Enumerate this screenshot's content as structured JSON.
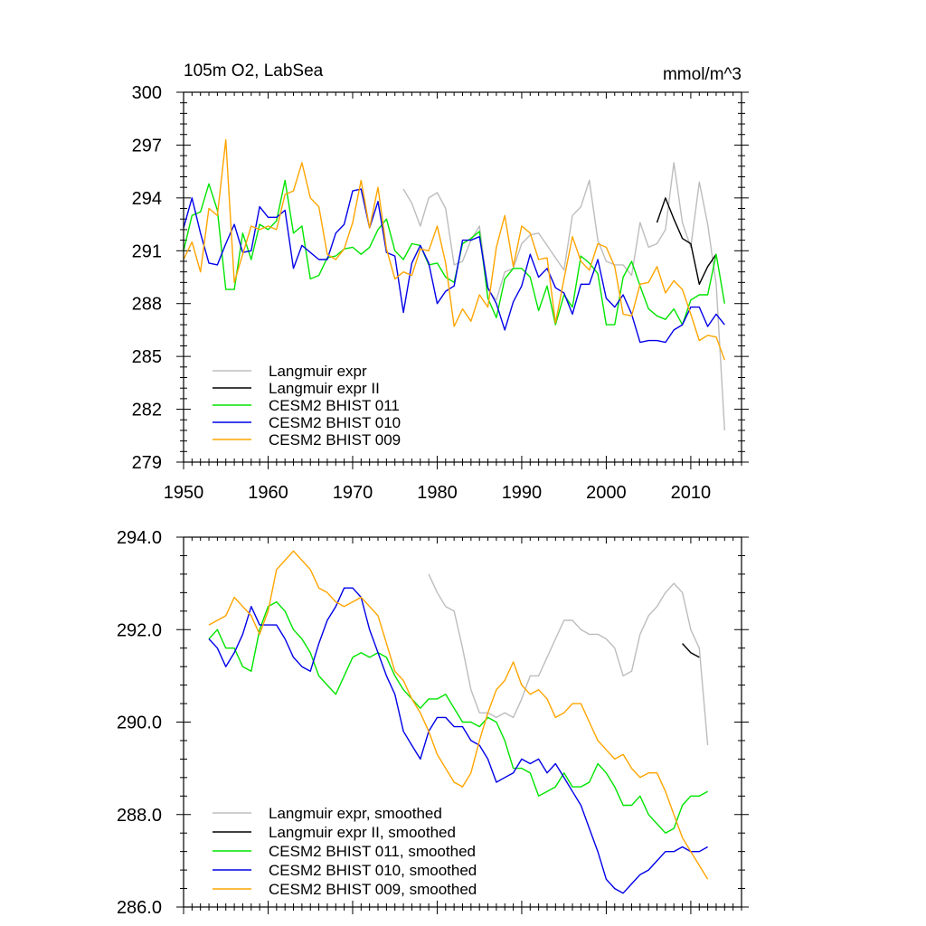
{
  "chart_data": [
    {
      "type": "line",
      "title_left": "105m O2, LabSea",
      "title_right": "mmol/m^3",
      "xlabel": "",
      "ylabel": "",
      "xlim": [
        1950,
        2016
      ],
      "ylim": [
        279,
        300
      ],
      "xticks": [
        1950,
        1960,
        1970,
        1980,
        1990,
        2000,
        2010
      ],
      "xtick_labels": [
        "1950",
        "1960",
        "1970",
        "1980",
        "1990",
        "2000",
        "2010"
      ],
      "yticks": [
        279,
        282,
        285,
        288,
        291,
        294,
        297,
        300
      ],
      "ytick_labels": [
        "279",
        "282",
        "285",
        "288",
        "291",
        "294",
        "297",
        "300"
      ],
      "legend_position": "bottom-left",
      "series": [
        {
          "name": "Langmuir expr",
          "color": "#bdbdbd",
          "x": [
            1976,
            1977,
            1978,
            1979,
            1980,
            1981,
            1982,
            1983,
            1984,
            1985,
            1986,
            1987,
            1988,
            1989,
            1990,
            1991,
            1992,
            1993,
            1994,
            1995,
            1996,
            1997,
            1998,
            1999,
            2000,
            2001,
            2002,
            2003,
            2004,
            2005,
            2006,
            2007,
            2008,
            2009,
            2010,
            2011,
            2012,
            2013,
            2014
          ],
          "y": [
            294.5,
            293.7,
            292.4,
            294.0,
            294.3,
            293.4,
            290.2,
            290.4,
            291.6,
            292.4,
            288.8,
            288.2,
            289.8,
            290.0,
            291.4,
            291.9,
            292.0,
            291.3,
            290.6,
            289.9,
            293.0,
            293.5,
            295.0,
            291.6,
            290.4,
            290.2,
            290.2,
            289.6,
            292.6,
            291.2,
            291.4,
            292.2,
            296.0,
            292.6,
            291.2,
            294.9,
            292.5,
            289.1,
            280.8
          ]
        },
        {
          "name": "Langmuir expr II",
          "color": "#000000",
          "x": [
            2006,
            2007,
            2008,
            2009,
            2010,
            2011,
            2012,
            2013
          ],
          "y": [
            292.6,
            294.0,
            292.8,
            291.7,
            291.4,
            289.1,
            290.1,
            290.8
          ]
        },
        {
          "name": "CESM2 BHIST 011",
          "color": "#00e400",
          "x": [
            1950,
            1951,
            1952,
            1953,
            1954,
            1955,
            1956,
            1957,
            1958,
            1959,
            1960,
            1961,
            1962,
            1963,
            1964,
            1965,
            1966,
            1967,
            1968,
            1969,
            1970,
            1971,
            1972,
            1973,
            1974,
            1975,
            1976,
            1977,
            1978,
            1979,
            1980,
            1981,
            1982,
            1983,
            1984,
            1985,
            1986,
            1987,
            1988,
            1989,
            1990,
            1991,
            1992,
            1993,
            1994,
            1995,
            1996,
            1997,
            1998,
            1999,
            2000,
            2001,
            2002,
            2003,
            2004,
            2005,
            2006,
            2007,
            2008,
            2009,
            2010,
            2011,
            2012,
            2013,
            2014
          ],
          "y": [
            291.0,
            293.0,
            293.2,
            294.8,
            293.3,
            288.8,
            288.8,
            292.0,
            290.5,
            292.5,
            292.2,
            292.7,
            295.0,
            292.0,
            292.4,
            289.4,
            289.6,
            290.6,
            290.7,
            291.1,
            291.2,
            290.8,
            291.2,
            292.2,
            292.8,
            291.0,
            290.5,
            291.4,
            291.3,
            290.2,
            290.3,
            289.5,
            289.2,
            291.4,
            291.7,
            292.1,
            288.3,
            287.2,
            289.4,
            290.0,
            290.0,
            289.5,
            287.6,
            289.0,
            286.8,
            288.5,
            287.8,
            290.7,
            290.3,
            289.7,
            286.8,
            286.8,
            289.5,
            290.4,
            289.0,
            287.7,
            287.3,
            287.1,
            287.7,
            286.8,
            288.2,
            288.5,
            288.5,
            290.8,
            288.0
          ]
        },
        {
          "name": "CESM2 BHIST 010",
          "color": "#0000e8",
          "x": [
            1950,
            1951,
            1952,
            1953,
            1954,
            1955,
            1956,
            1957,
            1958,
            1959,
            1960,
            1961,
            1962,
            1963,
            1964,
            1965,
            1966,
            1967,
            1968,
            1969,
            1970,
            1971,
            1972,
            1973,
            1974,
            1975,
            1976,
            1977,
            1978,
            1979,
            1980,
            1981,
            1982,
            1983,
            1984,
            1985,
            1986,
            1987,
            1988,
            1989,
            1990,
            1991,
            1992,
            1993,
            1994,
            1995,
            1996,
            1997,
            1998,
            1999,
            2000,
            2001,
            2002,
            2003,
            2004,
            2005,
            2006,
            2007,
            2008,
            2009,
            2010,
            2011,
            2012,
            2013,
            2014
          ],
          "y": [
            292.3,
            294.0,
            292.0,
            290.3,
            290.2,
            291.4,
            292.5,
            290.9,
            291.0,
            293.5,
            292.9,
            292.9,
            293.3,
            290.0,
            291.3,
            290.9,
            290.5,
            290.5,
            292.0,
            292.5,
            294.4,
            294.5,
            292.3,
            293.8,
            290.9,
            290.7,
            287.5,
            290.3,
            291.3,
            290.3,
            288.0,
            288.7,
            289.0,
            291.6,
            291.6,
            291.8,
            288.9,
            288.0,
            286.5,
            288.1,
            289.0,
            290.8,
            289.5,
            290.0,
            288.9,
            288.6,
            287.4,
            289.1,
            289.1,
            290.5,
            288.3,
            287.8,
            288.5,
            287.4,
            285.8,
            285.9,
            285.9,
            285.8,
            286.5,
            286.8,
            287.8,
            287.8,
            286.7,
            287.4,
            286.8
          ]
        },
        {
          "name": "CESM2 BHIST 009",
          "color": "#ffa500",
          "x": [
            1950,
            1951,
            1952,
            1953,
            1954,
            1955,
            1956,
            1957,
            1958,
            1959,
            1960,
            1961,
            1962,
            1963,
            1964,
            1965,
            1966,
            1967,
            1968,
            1969,
            1970,
            1971,
            1972,
            1973,
            1974,
            1975,
            1976,
            1977,
            1978,
            1979,
            1980,
            1981,
            1982,
            1983,
            1984,
            1985,
            1986,
            1987,
            1988,
            1989,
            1990,
            1991,
            1992,
            1993,
            1994,
            1995,
            1996,
            1997,
            1998,
            1999,
            2000,
            2001,
            2002,
            2003,
            2004,
            2005,
            2006,
            2007,
            2008,
            2009,
            2010,
            2011,
            2012,
            2013,
            2014
          ],
          "y": [
            290.5,
            291.5,
            289.8,
            293.4,
            293.0,
            297.3,
            289.2,
            290.8,
            292.4,
            292.2,
            292.4,
            292.2,
            294.2,
            294.4,
            296.0,
            294.0,
            293.5,
            290.8,
            290.5,
            291.1,
            292.6,
            295.0,
            292.3,
            294.6,
            291.1,
            289.4,
            289.8,
            289.6,
            291.1,
            291.0,
            292.4,
            290.3,
            286.7,
            287.7,
            287.0,
            288.5,
            287.8,
            291.2,
            293.0,
            290.1,
            292.4,
            292.0,
            290.5,
            290.6,
            286.9,
            289.4,
            291.8,
            290.4,
            289.9,
            291.4,
            291.2,
            290.1,
            287.4,
            287.3,
            289.1,
            289.2,
            290.1,
            288.6,
            289.3,
            288.8,
            287.4,
            285.9,
            286.2,
            286.1,
            284.8
          ]
        }
      ]
    },
    {
      "type": "line",
      "xlabel": "",
      "ylabel": "",
      "xlim": [
        1950,
        2016
      ],
      "ylim": [
        286.0,
        294.0
      ],
      "xticks": [
        1950,
        1960,
        1970,
        1980,
        1990,
        2000,
        2010
      ],
      "yticks": [
        286.0,
        288.0,
        290.0,
        292.0,
        294.0
      ],
      "ytick_labels": [
        "286.0",
        "288.0",
        "290.0",
        "292.0",
        "294.0"
      ],
      "legend_position": "bottom-left",
      "series": [
        {
          "name": "Langmuir expr, smoothed",
          "color": "#bdbdbd",
          "x": [
            1979,
            1980,
            1981,
            1982,
            1983,
            1984,
            1985,
            1986,
            1987,
            1988,
            1989,
            1990,
            1991,
            1992,
            1993,
            1994,
            1995,
            1996,
            1997,
            1998,
            1999,
            2000,
            2001,
            2002,
            2003,
            2004,
            2005,
            2006,
            2007,
            2008,
            2009,
            2010,
            2011,
            2012
          ],
          "y": [
            293.2,
            292.8,
            292.5,
            292.4,
            291.6,
            290.7,
            290.2,
            290.2,
            290.1,
            290.2,
            290.1,
            290.5,
            291.0,
            291.0,
            291.4,
            291.8,
            292.2,
            292.2,
            292.0,
            291.9,
            291.9,
            291.8,
            291.6,
            291.0,
            291.1,
            291.9,
            292.3,
            292.5,
            292.8,
            293.0,
            292.8,
            292.0,
            291.6,
            289.5
          ]
        },
        {
          "name": "Langmuir expr II, smoothed",
          "color": "#000000",
          "x": [
            2009,
            2010,
            2011
          ],
          "y": [
            291.7,
            291.5,
            291.4
          ]
        },
        {
          "name": "CESM2 BHIST 011, smoothed",
          "color": "#00e400",
          "x": [
            1953,
            1954,
            1955,
            1956,
            1957,
            1958,
            1959,
            1960,
            1961,
            1962,
            1963,
            1964,
            1965,
            1966,
            1967,
            1968,
            1969,
            1970,
            1971,
            1972,
            1973,
            1974,
            1975,
            1976,
            1977,
            1978,
            1979,
            1980,
            1981,
            1982,
            1983,
            1984,
            1985,
            1986,
            1987,
            1988,
            1989,
            1990,
            1991,
            1992,
            1993,
            1994,
            1995,
            1996,
            1997,
            1998,
            1999,
            2000,
            2001,
            2002,
            2003,
            2004,
            2005,
            2006,
            2007,
            2008,
            2009,
            2010,
            2011,
            2012
          ],
          "y": [
            291.8,
            292.0,
            291.6,
            291.6,
            291.2,
            291.1,
            292.0,
            292.5,
            292.6,
            292.4,
            292.0,
            291.8,
            291.5,
            291.0,
            290.8,
            290.6,
            291.0,
            291.4,
            291.5,
            291.4,
            291.5,
            291.4,
            291.0,
            290.7,
            290.5,
            290.3,
            290.5,
            290.5,
            290.6,
            290.3,
            290.0,
            290.0,
            289.9,
            290.1,
            290.0,
            289.6,
            289.0,
            289.0,
            288.9,
            288.4,
            288.5,
            288.6,
            288.9,
            288.6,
            288.6,
            288.7,
            289.1,
            288.9,
            288.6,
            288.2,
            288.2,
            288.4,
            288.0,
            287.8,
            287.6,
            287.7,
            288.2,
            288.4,
            288.4,
            288.5
          ]
        },
        {
          "name": "CESM2 BHIST 010, smoothed",
          "color": "#0000e8",
          "x": [
            1953,
            1954,
            1955,
            1956,
            1957,
            1958,
            1959,
            1960,
            1961,
            1962,
            1963,
            1964,
            1965,
            1966,
            1967,
            1968,
            1969,
            1970,
            1971,
            1972,
            1973,
            1974,
            1975,
            1976,
            1977,
            1978,
            1979,
            1980,
            1981,
            1982,
            1983,
            1984,
            1985,
            1986,
            1987,
            1988,
            1989,
            1990,
            1991,
            1992,
            1993,
            1994,
            1995,
            1996,
            1997,
            1998,
            1999,
            2000,
            2001,
            2002,
            2003,
            2004,
            2005,
            2006,
            2007,
            2008,
            2009,
            2010,
            2011,
            2012
          ],
          "y": [
            291.8,
            291.6,
            291.2,
            291.5,
            291.9,
            292.5,
            292.1,
            292.1,
            292.1,
            291.8,
            291.4,
            291.2,
            291.1,
            291.7,
            292.2,
            292.5,
            292.9,
            292.9,
            292.7,
            292.0,
            291.5,
            291.0,
            290.6,
            289.8,
            289.5,
            289.2,
            289.8,
            290.1,
            290.1,
            289.9,
            289.9,
            289.6,
            289.5,
            289.2,
            288.7,
            288.8,
            288.9,
            289.2,
            289.1,
            289.2,
            288.9,
            289.1,
            288.8,
            288.5,
            288.2,
            287.7,
            287.2,
            286.6,
            286.4,
            286.3,
            286.5,
            286.7,
            286.8,
            287.0,
            287.2,
            287.2,
            287.3,
            287.2,
            287.2,
            287.3
          ]
        },
        {
          "name": "CESM2 BHIST 009, smoothed",
          "color": "#ffa500",
          "x": [
            1953,
            1954,
            1955,
            1956,
            1957,
            1958,
            1959,
            1960,
            1961,
            1962,
            1963,
            1964,
            1965,
            1966,
            1967,
            1968,
            1969,
            1970,
            1971,
            1972,
            1973,
            1974,
            1975,
            1976,
            1977,
            1978,
            1979,
            1980,
            1981,
            1982,
            1983,
            1984,
            1985,
            1986,
            1987,
            1988,
            1989,
            1990,
            1991,
            1992,
            1993,
            1994,
            1995,
            1996,
            1997,
            1998,
            1999,
            2000,
            2001,
            2002,
            2003,
            2004,
            2005,
            2006,
            2007,
            2008,
            2009,
            2010,
            2011,
            2012
          ],
          "y": [
            292.1,
            292.2,
            292.3,
            292.7,
            292.5,
            292.3,
            291.9,
            292.4,
            293.3,
            293.5,
            293.7,
            293.5,
            293.3,
            292.9,
            292.8,
            292.6,
            292.5,
            292.6,
            292.7,
            292.5,
            292.3,
            291.7,
            291.1,
            290.9,
            290.5,
            290.2,
            289.8,
            289.3,
            289.0,
            288.7,
            288.6,
            288.9,
            289.6,
            290.2,
            290.7,
            290.9,
            291.3,
            290.8,
            290.6,
            290.7,
            290.5,
            290.1,
            290.2,
            290.4,
            290.4,
            290.0,
            289.6,
            289.4,
            289.2,
            289.3,
            289.0,
            288.8,
            288.9,
            288.9,
            288.5,
            288.0,
            287.5,
            287.2,
            286.9,
            286.6
          ]
        }
      ]
    }
  ]
}
